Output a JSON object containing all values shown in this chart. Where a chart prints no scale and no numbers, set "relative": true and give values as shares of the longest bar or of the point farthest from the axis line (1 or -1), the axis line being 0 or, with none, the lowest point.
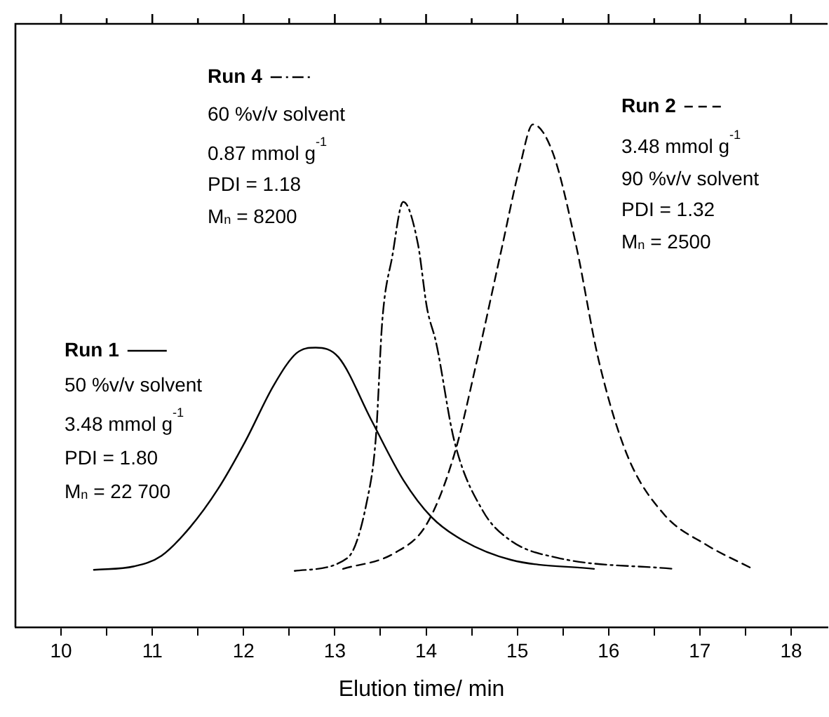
{
  "chart_data": {
    "type": "line",
    "relative": true,
    "xlabel": "Elution time/ min",
    "xlim": [
      9.5,
      18.4
    ],
    "xticks": [
      10,
      {
        "value": 10.5,
        "label": null
      },
      11,
      {
        "value": 11.5,
        "label": null
      },
      12,
      {
        "value": 12.5,
        "label": null
      },
      13,
      {
        "value": 13.5,
        "label": null
      },
      14,
      {
        "value": 14.5,
        "label": null
      },
      15,
      {
        "value": 15.5,
        "label": null
      },
      16,
      {
        "value": 16.5,
        "label": null
      },
      17,
      {
        "value": 17.5,
        "label": null
      },
      18
    ],
    "legend": "top",
    "grid": false,
    "marker": "none",
    "series": [
      {
        "name": "Run 1",
        "color": "#000000",
        "line_style": "solid",
        "x": [
          10.36,
          10.8,
          11.1,
          11.41,
          11.72,
          12.02,
          12.33,
          12.58,
          12.79,
          13.04,
          13.4,
          13.75,
          14.06,
          14.41,
          14.93,
          15.84
        ],
        "values": [
          0.114,
          0.121,
          0.142,
          0.198,
          0.275,
          0.37,
          0.481,
          0.545,
          0.556,
          0.537,
          0.412,
          0.293,
          0.219,
          0.172,
          0.134,
          0.116
        ]
      },
      {
        "name": "Run 4",
        "color": "#000000",
        "line_style": "dashdot",
        "x": [
          12.56,
          13.14,
          13.35,
          13.45,
          13.52,
          13.63,
          13.75,
          13.91,
          14.01,
          14.11,
          14.31,
          14.62,
          14.93,
          15.44,
          16.71
        ],
        "values": [
          0.112,
          0.138,
          0.249,
          0.378,
          0.609,
          0.738,
          0.846,
          0.763,
          0.635,
          0.566,
          0.37,
          0.232,
          0.172,
          0.138,
          0.116
        ]
      },
      {
        "name": "Run 2",
        "color": "#000000",
        "line_style": "dashed",
        "x": [
          13.09,
          13.65,
          14.01,
          14.31,
          14.56,
          14.82,
          15.03,
          15.17,
          15.39,
          15.64,
          15.89,
          16.2,
          16.61,
          17.07,
          17.58
        ],
        "values": [
          0.116,
          0.147,
          0.206,
          0.344,
          0.532,
          0.746,
          0.918,
          1,
          0.943,
          0.763,
          0.532,
          0.344,
          0.224,
          0.164,
          0.116
        ]
      }
    ],
    "annotations": [
      "50 %v/v solvent",
      "3.48 mmol g$^{-1}$",
      "PDI = 1.80",
      "M$_{n}$ = 22 700",
      "60 %v/v solvent",
      "0.87 mmol g$^{-1}$",
      "PDI = 1.18",
      "M$_{n}$ = 8200",
      "3.48 mmol g$^{-1}$",
      "90 %v/v solvent",
      "PDI = 1.32",
      "M$_{n}$ = 2500"
    ]
  }
}
